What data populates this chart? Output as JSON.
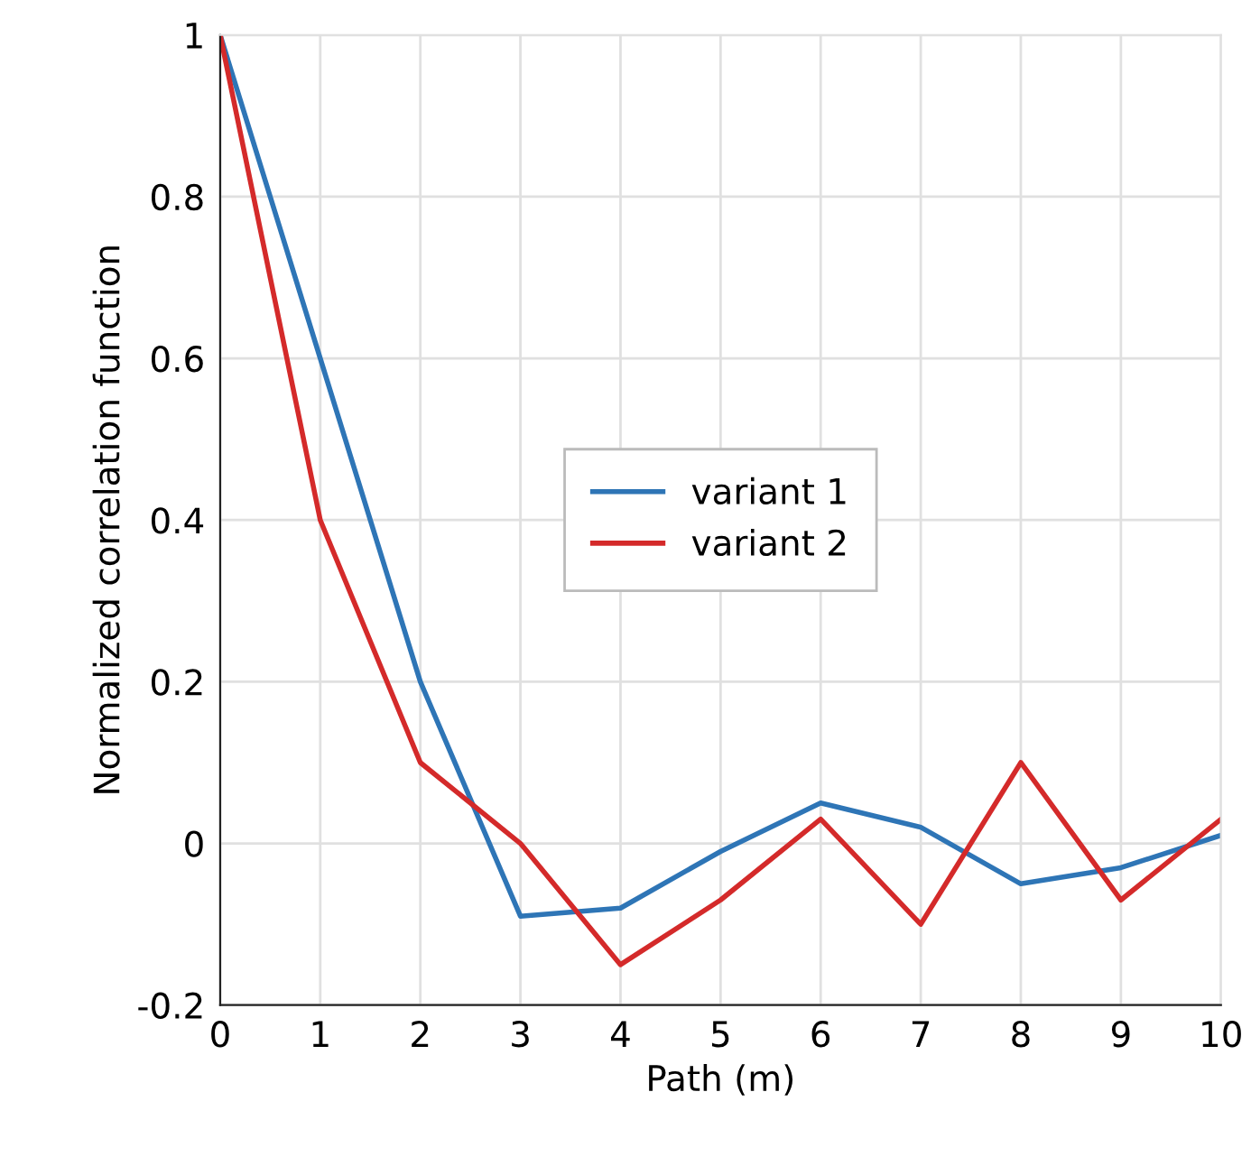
{
  "chart_data": {
    "type": "line",
    "xlabel": "Path (m)",
    "ylabel": "Normalized correlation function",
    "x": [
      0,
      1,
      2,
      3,
      4,
      5,
      6,
      7,
      8,
      9,
      10
    ],
    "series": [
      {
        "name": "variant 1",
        "color": "#2e75b6",
        "values": [
          1,
          0.6,
          0.2,
          -0.09,
          -0.08,
          -0.01,
          0.05,
          0.02,
          -0.05,
          -0.03,
          0.01
        ]
      },
      {
        "name": "variant 2",
        "color": "#d42a2a",
        "values": [
          1,
          0.4,
          0.1,
          0.0,
          -0.15,
          -0.07,
          0.03,
          -0.1,
          0.1,
          -0.07,
          0.03
        ]
      }
    ],
    "xlim": [
      0,
      10
    ],
    "xticks": [
      0,
      1,
      2,
      3,
      4,
      5,
      6,
      7,
      8,
      9,
      10
    ],
    "ylim": [
      -0.2,
      1
    ],
    "yticks": [
      -0.2,
      0,
      0.2,
      0.4,
      0.6,
      0.8,
      1
    ],
    "grid": true,
    "legend": "center",
    "marker": "none",
    "line_style": "solid"
  }
}
